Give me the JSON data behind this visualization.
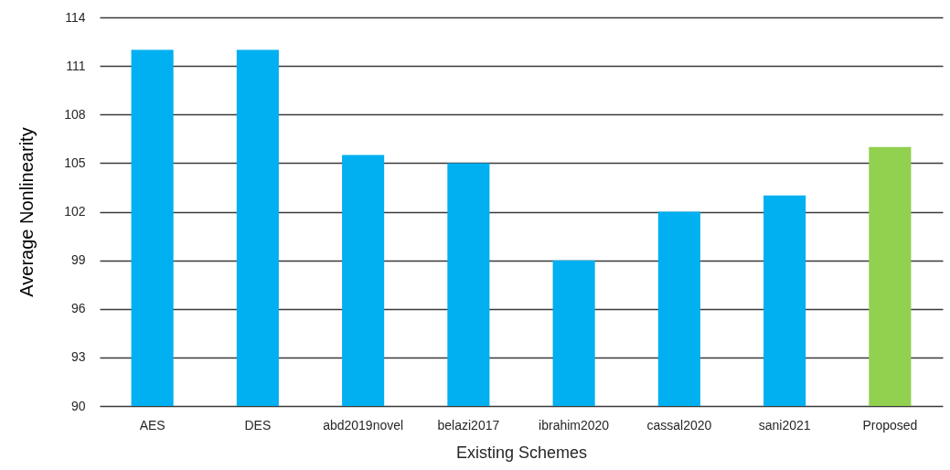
{
  "chart_data": {
    "type": "bar",
    "xlabel": "Existing Schemes",
    "ylabel": "Average Nonlinearity",
    "categories": [
      "AES",
      "DES",
      "abd2019novel",
      "belazi2017",
      "ibrahim2020",
      "cassal2020",
      "sani2021",
      "Proposed"
    ],
    "values": [
      112,
      112,
      105.5,
      105,
      99,
      102,
      103,
      106
    ],
    "colors": [
      "#00b0f0",
      "#00b0f0",
      "#00b0f0",
      "#00b0f0",
      "#00b0f0",
      "#00b0f0",
      "#00b0f0",
      "#92d050"
    ],
    "ylim": [
      90,
      114
    ],
    "yticks": [
      90,
      93,
      96,
      99,
      102,
      105,
      108,
      111,
      114
    ],
    "grid": "y"
  }
}
